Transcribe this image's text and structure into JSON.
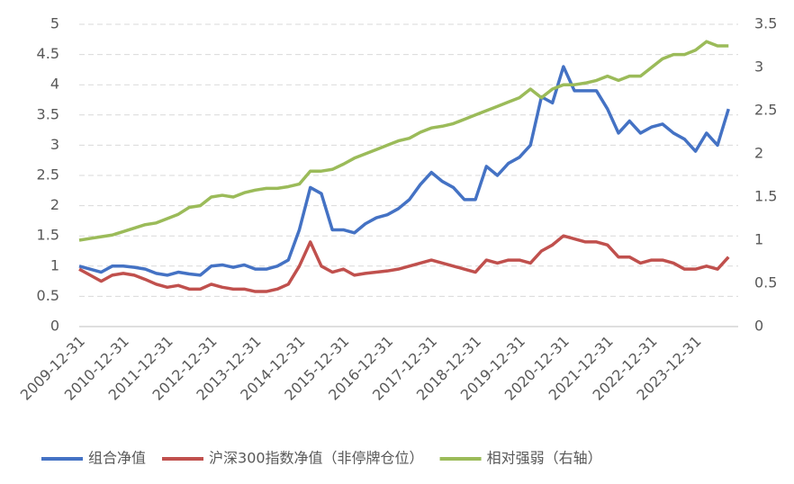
{
  "chart_data": {
    "type": "line",
    "categories": [
      "2009-12-31",
      null,
      null,
      null,
      "2010-12-31",
      null,
      null,
      null,
      "2011-12-31",
      null,
      null,
      null,
      "2012-12-31",
      null,
      null,
      null,
      "2013-12-31",
      null,
      null,
      null,
      "2014-12-31",
      null,
      null,
      null,
      "2015-12-31",
      null,
      null,
      null,
      "2016-12-31",
      null,
      null,
      null,
      "2017-12-31",
      null,
      null,
      null,
      "2018-12-31",
      null,
      null,
      null,
      "2019-12-31",
      null,
      null,
      null,
      "2020-12-31",
      null,
      null,
      null,
      "2021-12-31",
      null,
      null,
      null,
      "2022-12-31",
      null,
      null,
      null,
      "2023-12-31",
      null,
      null,
      null
    ],
    "series": [
      {
        "name": "组合净值",
        "color": "#4472c4",
        "values": [
          1.0,
          0.95,
          0.9,
          1.0,
          1.0,
          0.98,
          0.95,
          0.88,
          0.85,
          0.9,
          0.87,
          0.85,
          1.0,
          1.02,
          0.98,
          1.02,
          0.95,
          0.95,
          1.0,
          1.1,
          1.6,
          2.3,
          2.2,
          1.6,
          1.6,
          1.55,
          1.7,
          1.8,
          1.85,
          1.95,
          2.1,
          2.35,
          2.55,
          2.4,
          2.3,
          2.1,
          2.1,
          2.65,
          2.5,
          2.7,
          2.8,
          3.0,
          3.8,
          3.7,
          4.3,
          3.9,
          3.9,
          3.9,
          3.6,
          3.2,
          3.4,
          3.2,
          3.3,
          3.35,
          3.2,
          3.1,
          2.9,
          3.2,
          3.0,
          3.6
        ]
      },
      {
        "name": "沪深300指数净值（非停牌仓位）",
        "color": "#c0504d",
        "values": [
          0.95,
          0.85,
          0.75,
          0.85,
          0.88,
          0.85,
          0.78,
          0.7,
          0.65,
          0.68,
          0.62,
          0.62,
          0.7,
          0.65,
          0.62,
          0.62,
          0.58,
          0.58,
          0.62,
          0.7,
          1.0,
          1.4,
          1.0,
          0.9,
          0.95,
          0.85,
          0.88,
          0.9,
          0.92,
          0.95,
          1.0,
          1.05,
          1.1,
          1.05,
          1.0,
          0.95,
          0.9,
          1.1,
          1.05,
          1.1,
          1.1,
          1.05,
          1.25,
          1.35,
          1.5,
          1.45,
          1.4,
          1.4,
          1.35,
          1.15,
          1.15,
          1.05,
          1.1,
          1.1,
          1.05,
          0.95,
          0.95,
          1.0,
          0.95,
          1.15
        ]
      },
      {
        "name": "相对强弱（右轴）",
        "color": "#9bbb59",
        "axis": "y2",
        "values": [
          1.0,
          1.02,
          1.04,
          1.06,
          1.1,
          1.14,
          1.18,
          1.2,
          1.25,
          1.3,
          1.38,
          1.4,
          1.5,
          1.52,
          1.5,
          1.55,
          1.58,
          1.6,
          1.6,
          1.62,
          1.65,
          1.8,
          1.8,
          1.82,
          1.88,
          1.95,
          2.0,
          2.05,
          2.1,
          2.15,
          2.18,
          2.25,
          2.3,
          2.32,
          2.35,
          2.4,
          2.45,
          2.5,
          2.55,
          2.6,
          2.65,
          2.75,
          2.65,
          2.75,
          2.8,
          2.8,
          2.82,
          2.85,
          2.9,
          2.85,
          2.9,
          2.9,
          3.0,
          3.1,
          3.15,
          3.15,
          3.2,
          3.3,
          3.25,
          3.25
        ]
      }
    ],
    "ylim": [
      0,
      5
    ],
    "yticks": [
      0,
      0.5,
      1,
      1.5,
      2,
      2.5,
      3,
      3.5,
      4,
      4.5,
      5
    ],
    "y2lim": [
      0,
      3.5
    ],
    "y2ticks": [
      0,
      0.5,
      1,
      1.5,
      2,
      2.5,
      3,
      3.5
    ],
    "grid": true,
    "legend": "bottom"
  }
}
